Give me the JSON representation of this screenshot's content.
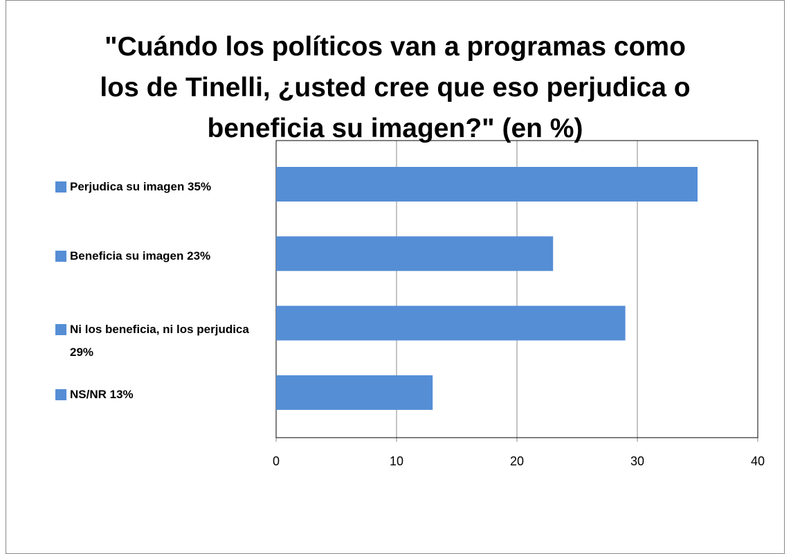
{
  "chart_data": {
    "type": "bar",
    "orientation": "horizontal",
    "title": "\"Cuándo los políticos van a programas como los de Tinelli, ¿usted cree que eso perjudica o beneficia su imagen?\" (en %)",
    "categories": [
      "Perjudica su imagen 35%",
      "Beneficia su imagen 23%",
      "Ni los beneficia, ni los perjudica 29%",
      "NS/NR 13%"
    ],
    "values": [
      35,
      23,
      29,
      13
    ],
    "color": "#558ed5",
    "xlim": [
      0,
      40
    ],
    "xticks": [
      0,
      10,
      20,
      30,
      40
    ],
    "grid": true
  }
}
